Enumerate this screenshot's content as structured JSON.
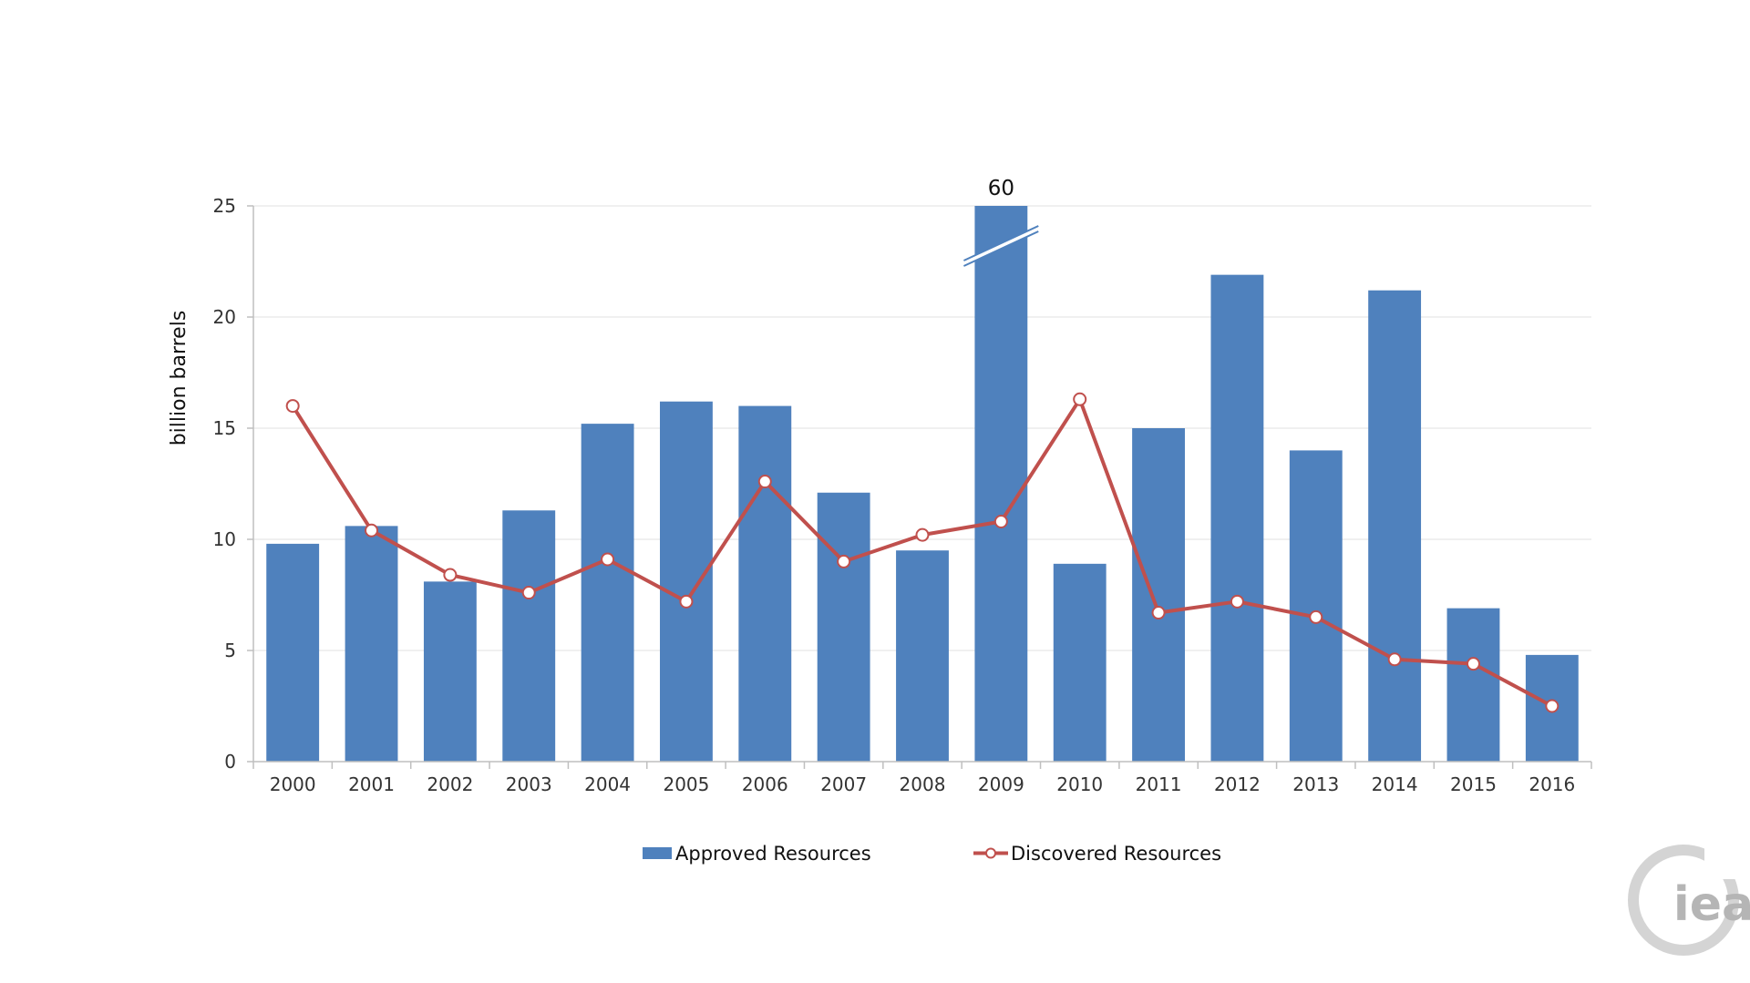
{
  "chart_data": {
    "type": "bar",
    "categories": [
      "2000",
      "2001",
      "2002",
      "2003",
      "2004",
      "2005",
      "2006",
      "2007",
      "2008",
      "2009",
      "2010",
      "2011",
      "2012",
      "2013",
      "2014",
      "2015",
      "2016"
    ],
    "series": [
      {
        "name": "Approved Resources",
        "kind": "bar",
        "color": "#4f81bd",
        "values": [
          9.8,
          10.6,
          8.1,
          11.3,
          15.2,
          16.2,
          16.0,
          12.1,
          9.5,
          60,
          8.9,
          15.0,
          21.9,
          14.0,
          21.2,
          6.9,
          4.8
        ]
      },
      {
        "name": "Discovered Resources",
        "kind": "line",
        "color": "#c0504d",
        "values": [
          16.0,
          10.4,
          8.4,
          7.6,
          9.1,
          7.2,
          12.6,
          9.0,
          10.2,
          10.8,
          16.3,
          6.7,
          7.2,
          6.5,
          4.6,
          4.4,
          2.5
        ]
      }
    ],
    "ylabel": "billion barrels",
    "xlabel": "",
    "ylim": [
      0,
      25
    ],
    "yticks": [
      "0",
      "5",
      "10",
      "15",
      "20",
      "25"
    ],
    "axis_break": {
      "category": "2009",
      "label": "60"
    },
    "grid": true,
    "legend": "bottom"
  },
  "logo": {
    "text": "iea"
  }
}
